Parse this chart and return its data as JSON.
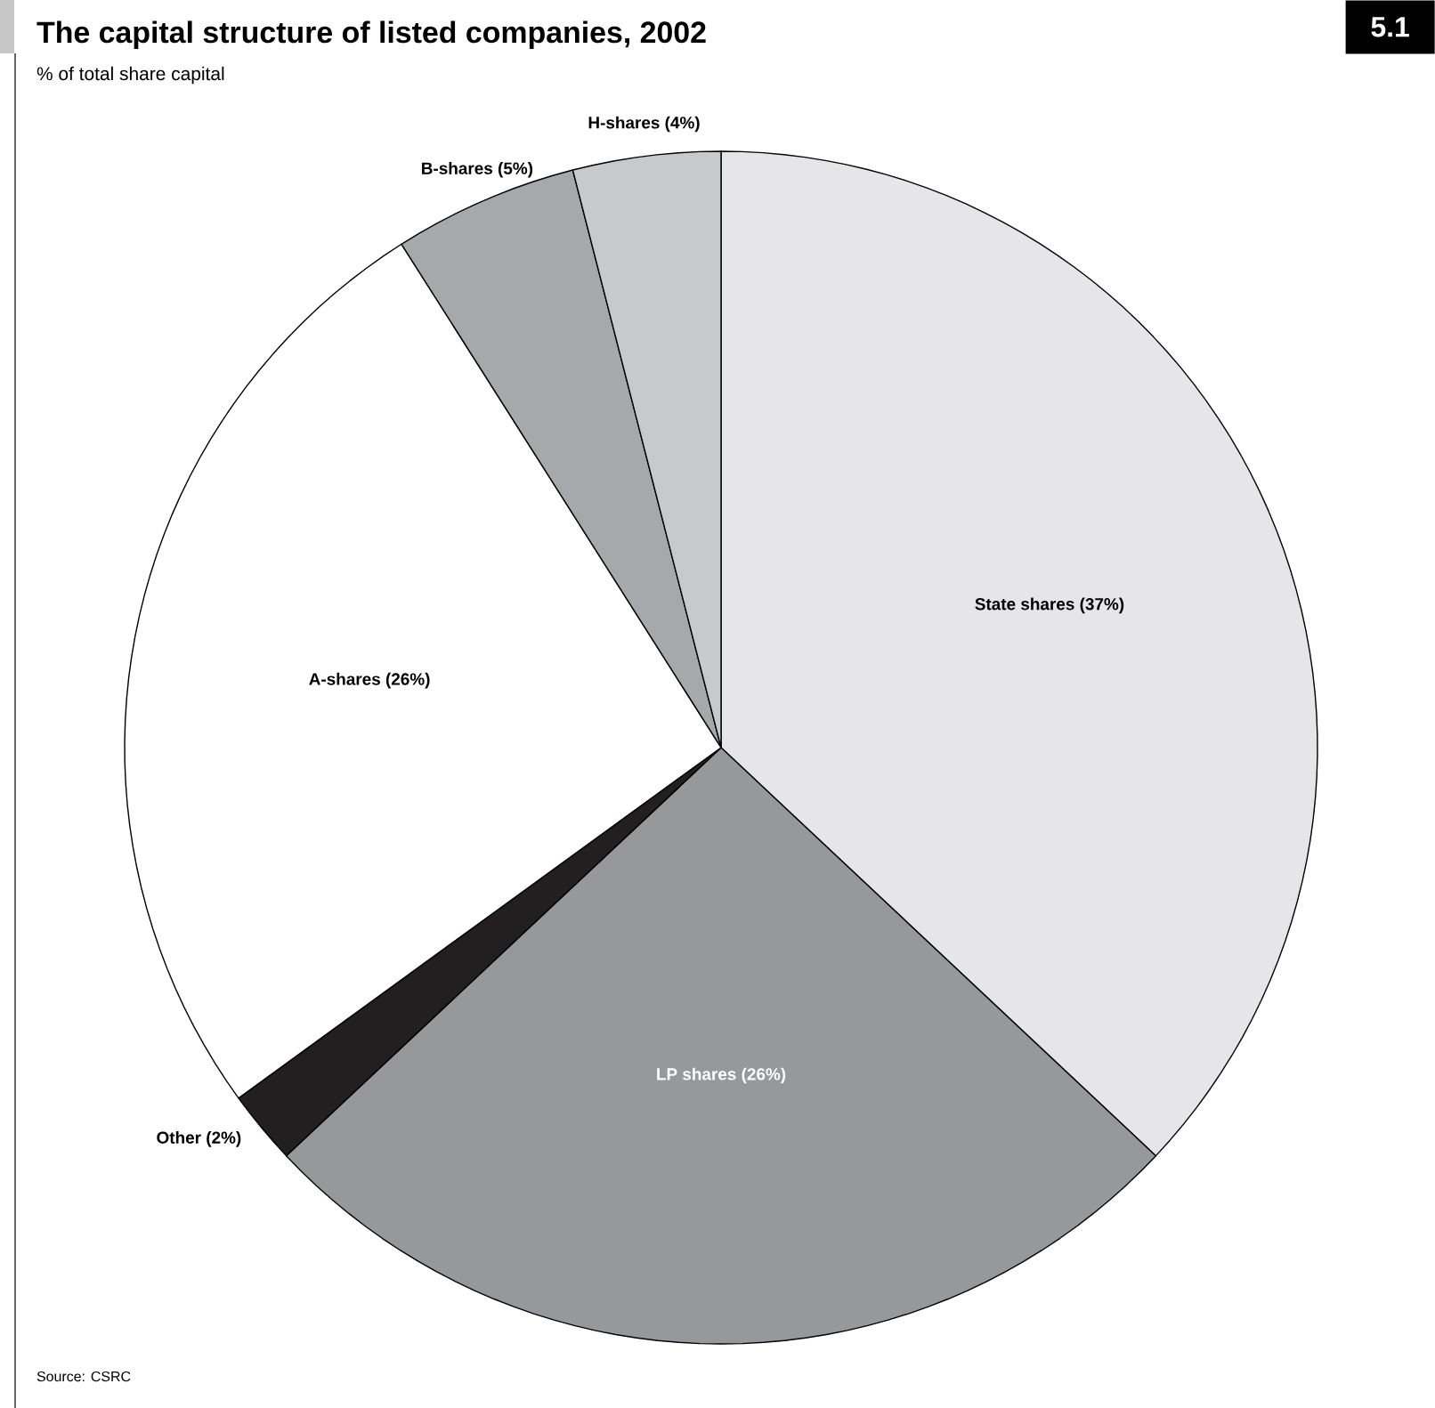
{
  "chart_data": {
    "type": "pie",
    "title": "The capital structure of listed companies, 2002",
    "subtitle": "% of total share capital",
    "categories": [
      "State shares (37%)",
      "LP shares (26%)",
      "Other (2%)",
      "A-shares (26%)",
      "B-shares (5%)",
      "H-shares (4%)"
    ],
    "values": [
      37,
      26,
      2,
      26,
      5,
      4
    ],
    "colors": [
      "#e6e6e8",
      "#97989b",
      "#231f20",
      "#ffffff",
      "#a7a8ab",
      "#c8c9cb"
    ],
    "annotations": [
      "Source: CSRC",
      "5.1"
    ]
  }
}
